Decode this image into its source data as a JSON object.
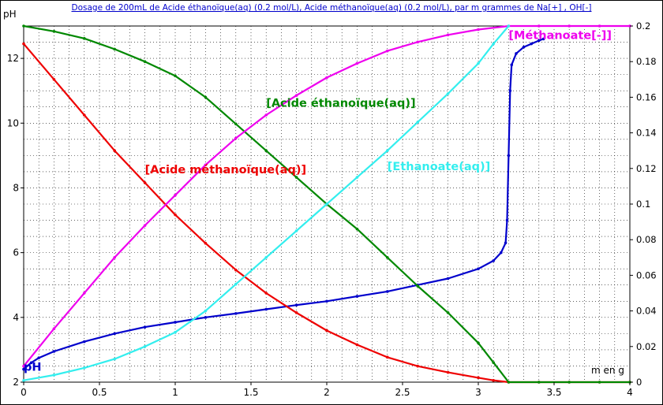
{
  "chart_data": {
    "type": "line",
    "title": "Dosage de 200mL de Acide éthanoïque(aq) (0.2 mol/L), Acide méthanoïque(aq) (0.2 mol/L),  par m grammes de Na[+] , OH[-]",
    "xlabel": "m en g",
    "ylabel_left": "pH",
    "ylabel_right": "",
    "xlim": [
      0,
      4
    ],
    "ylim_left": [
      2,
      13
    ],
    "ylim_right": [
      0,
      0.2
    ],
    "x_ticks": [
      "0",
      "0.5",
      "1",
      "1.5",
      "2",
      "2.5",
      "3",
      "3.5",
      "4"
    ],
    "y_ticks_left": [
      "2",
      "4",
      "6",
      "8",
      "10",
      "12"
    ],
    "y_ticks_right": [
      "0",
      "0.02",
      "0.04",
      "0.06",
      "0.08",
      "0.1",
      "0.12",
      "0.14",
      "0.16",
      "0.18",
      "0.2"
    ],
    "grid": true,
    "colors": {
      "background": "#ffffff",
      "border": "#000000",
      "title": "#0000cc",
      "axis_label": "#000000",
      "grid": "#000000"
    },
    "series": [
      {
        "name": "pH",
        "axis": "left",
        "color": "#0000cc",
        "x": [
          0,
          0.05,
          0.1,
          0.2,
          0.4,
          0.6,
          0.8,
          1.0,
          1.2,
          1.4,
          1.6,
          1.8,
          2.0,
          2.2,
          2.4,
          2.6,
          2.8,
          3.0,
          3.1,
          3.15,
          3.18,
          3.19,
          3.2,
          3.21,
          3.22,
          3.25,
          3.3,
          3.35,
          3.4,
          3.43
        ],
        "y": [
          2.4,
          2.6,
          2.75,
          2.95,
          3.25,
          3.5,
          3.7,
          3.85,
          4.0,
          4.12,
          4.25,
          4.38,
          4.5,
          4.65,
          4.8,
          5.0,
          5.2,
          5.5,
          5.75,
          6.0,
          6.3,
          7.0,
          9.0,
          11.0,
          11.8,
          12.15,
          12.35,
          12.45,
          12.55,
          12.6
        ]
      },
      {
        "name": "[Acide méthanoïque(aq)]",
        "axis": "right",
        "color": "#ee0000",
        "x": [
          0,
          0.2,
          0.4,
          0.6,
          0.8,
          1.0,
          1.2,
          1.4,
          1.6,
          1.8,
          2.0,
          2.2,
          2.4,
          2.6,
          2.8,
          3.0,
          3.1,
          3.2,
          3.4,
          3.6,
          3.8,
          4.0
        ],
        "y": [
          0.19,
          0.17,
          0.15,
          0.13,
          0.112,
          0.094,
          0.078,
          0.063,
          0.05,
          0.039,
          0.029,
          0.021,
          0.014,
          0.009,
          0.0055,
          0.0025,
          0.001,
          0.0,
          0.0,
          0.0,
          0.0,
          0.0
        ]
      },
      {
        "name": "[Acide éthanoïque(aq)]",
        "axis": "right",
        "color": "#008800",
        "x": [
          0,
          0.2,
          0.4,
          0.6,
          0.8,
          1.0,
          1.2,
          1.4,
          1.6,
          1.8,
          2.0,
          2.2,
          2.4,
          2.6,
          2.8,
          3.0,
          3.1,
          3.2,
          3.4,
          3.6,
          3.8,
          4.0
        ],
        "y": [
          0.2,
          0.197,
          0.193,
          0.187,
          0.18,
          0.172,
          0.16,
          0.145,
          0.13,
          0.115,
          0.1,
          0.086,
          0.07,
          0.054,
          0.039,
          0.022,
          0.011,
          0.0,
          0.0,
          0.0,
          0.0,
          0.0
        ]
      },
      {
        "name": "[Méthanoate[-]]",
        "axis": "right",
        "color": "#ee00ee",
        "x": [
          0,
          0.2,
          0.4,
          0.6,
          0.8,
          1.0,
          1.2,
          1.4,
          1.6,
          1.8,
          2.0,
          2.2,
          2.4,
          2.6,
          2.8,
          3.0,
          3.2,
          3.4,
          3.6,
          3.8,
          4.0
        ],
        "y": [
          0.009,
          0.03,
          0.05,
          0.07,
          0.088,
          0.105,
          0.122,
          0.137,
          0.15,
          0.161,
          0.171,
          0.179,
          0.186,
          0.191,
          0.195,
          0.198,
          0.2,
          0.2,
          0.2,
          0.2,
          0.2
        ]
      },
      {
        "name": "[Ethanoate(aq)]",
        "axis": "right",
        "color": "#33eeee",
        "x": [
          0,
          0.2,
          0.4,
          0.6,
          0.8,
          1.0,
          1.2,
          1.4,
          1.6,
          1.8,
          2.0,
          2.2,
          2.4,
          2.6,
          2.8,
          3.0,
          3.1,
          3.2
        ],
        "y": [
          0.001,
          0.004,
          0.008,
          0.013,
          0.02,
          0.028,
          0.04,
          0.055,
          0.07,
          0.085,
          0.1,
          0.115,
          0.13,
          0.146,
          0.162,
          0.179,
          0.19,
          0.2
        ]
      }
    ],
    "annotations": [
      {
        "text": "[Acide méthanoïque(aq)]",
        "color": "#ee0000",
        "x": 0.8,
        "y": 8.45,
        "axis": "left"
      },
      {
        "text": "[Acide éthanoïque(aq)]",
        "color": "#008800",
        "x": 1.6,
        "y": 10.5,
        "axis": "left"
      },
      {
        "text": "[Ethanoate(aq)]",
        "color": "#33eeee",
        "x": 2.4,
        "y": 8.55,
        "axis": "left"
      },
      {
        "text": "[Méthanoate[-]]",
        "color": "#ee00ee",
        "x": 3.2,
        "y": 12.6,
        "axis": "left"
      },
      {
        "text": "pH",
        "color": "#0000cc",
        "x": 0.0,
        "y": 2.35,
        "axis": "left"
      }
    ]
  }
}
